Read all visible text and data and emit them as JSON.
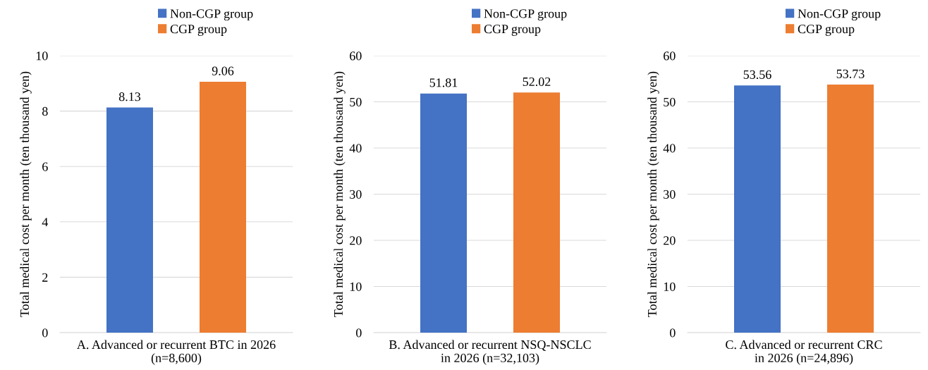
{
  "chart_data": [
    {
      "type": "bar",
      "categories": [
        null
      ],
      "xlabel": "A. Advanced or recurrent BTC in 2026\n(n=8,600)",
      "ylabel": "Total medical cost per month (ten thousand yen)",
      "ylim": [
        0,
        10
      ],
      "yticks": [
        0,
        2,
        4,
        6,
        8,
        10
      ],
      "grid": "y",
      "legend": "top right",
      "data_labels": true,
      "series": [
        {
          "name": "Non-CGP group",
          "color": "#4472c4",
          "values": [
            8.13
          ]
        },
        {
          "name": "CGP group",
          "color": "#ed7d31",
          "values": [
            9.06
          ]
        }
      ]
    },
    {
      "type": "bar",
      "categories": [
        null
      ],
      "xlabel": "B. Advanced or recurrent NSQ-NSCLC\nin 2026 (n=32,103)",
      "ylabel": "Total medical cost per month (ten thousand yen)",
      "ylim": [
        0,
        60
      ],
      "yticks": [
        0,
        10,
        20,
        30,
        40,
        50,
        60
      ],
      "grid": "y",
      "legend": "top right",
      "data_labels": true,
      "series": [
        {
          "name": "Non-CGP group",
          "color": "#4472c4",
          "values": [
            51.81
          ]
        },
        {
          "name": "CGP group",
          "color": "#ed7d31",
          "values": [
            52.02
          ]
        }
      ]
    },
    {
      "type": "bar",
      "categories": [
        null
      ],
      "xlabel": "C. Advanced or recurrent CRC\nin 2026 (n=24,896)",
      "ylabel": "Total medical cost per month (ten thousand yen)",
      "ylim": [
        0,
        60
      ],
      "yticks": [
        0,
        10,
        20,
        30,
        40,
        50,
        60
      ],
      "grid": "y",
      "legend": "top right",
      "data_labels": true,
      "series": [
        {
          "name": "Non-CGP group",
          "color": "#4472c4",
          "values": [
            53.56
          ]
        },
        {
          "name": "CGP group",
          "color": "#ed7d31",
          "values": [
            53.73
          ]
        }
      ]
    }
  ]
}
